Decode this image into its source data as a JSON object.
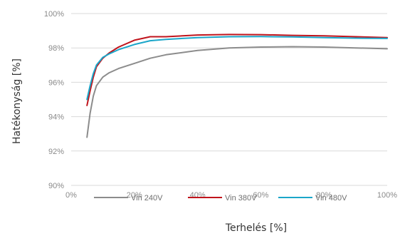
{
  "chart_data": {
    "type": "line",
    "xlabel": "Terhelés [%]",
    "ylabel": "Hatékonyság [%]",
    "xlim": [
      0,
      100
    ],
    "ylim": [
      90,
      100
    ],
    "x_ticks": [
      0,
      20,
      40,
      60,
      80,
      100
    ],
    "x_tick_labels": [
      "0%",
      "20%",
      "40%",
      "60%",
      "80%",
      "100%"
    ],
    "y_ticks": [
      90,
      92,
      94,
      96,
      98,
      100
    ],
    "y_tick_labels": [
      "90%",
      "92%",
      "94%",
      "96%",
      "98%",
      "100%"
    ],
    "grid": true,
    "legend_position": "bottom",
    "series": [
      {
        "name": "Vin 240V",
        "color": "#8c8c8c",
        "points": [
          [
            5,
            92.8
          ],
          [
            6,
            94.2
          ],
          [
            7,
            95.2
          ],
          [
            8,
            95.8
          ],
          [
            10,
            96.3
          ],
          [
            12,
            96.55
          ],
          [
            15,
            96.8
          ],
          [
            20,
            97.1
          ],
          [
            25,
            97.4
          ],
          [
            30,
            97.6
          ],
          [
            40,
            97.85
          ],
          [
            50,
            98.0
          ],
          [
            60,
            98.05
          ],
          [
            70,
            98.07
          ],
          [
            80,
            98.05
          ],
          [
            90,
            98.0
          ],
          [
            100,
            97.95
          ]
        ]
      },
      {
        "name": "Vin 380V",
        "color": "#c0141c",
        "points": [
          [
            5,
            94.65
          ],
          [
            6,
            95.5
          ],
          [
            7,
            96.3
          ],
          [
            8,
            96.9
          ],
          [
            10,
            97.4
          ],
          [
            12,
            97.7
          ],
          [
            15,
            98.05
          ],
          [
            20,
            98.45
          ],
          [
            25,
            98.65
          ],
          [
            30,
            98.65
          ],
          [
            40,
            98.75
          ],
          [
            50,
            98.78
          ],
          [
            60,
            98.77
          ],
          [
            70,
            98.73
          ],
          [
            80,
            98.7
          ],
          [
            90,
            98.65
          ],
          [
            100,
            98.6
          ]
        ]
      },
      {
        "name": "Vin 480V",
        "color": "#1ba6c9",
        "points": [
          [
            5,
            95.0
          ],
          [
            6,
            95.8
          ],
          [
            7,
            96.5
          ],
          [
            8,
            97.0
          ],
          [
            10,
            97.45
          ],
          [
            12,
            97.65
          ],
          [
            15,
            97.9
          ],
          [
            20,
            98.2
          ],
          [
            25,
            98.42
          ],
          [
            30,
            98.5
          ],
          [
            40,
            98.6
          ],
          [
            50,
            98.65
          ],
          [
            60,
            98.66
          ],
          [
            70,
            98.64
          ],
          [
            80,
            98.6
          ],
          [
            90,
            98.57
          ],
          [
            100,
            98.55
          ]
        ]
      }
    ]
  }
}
